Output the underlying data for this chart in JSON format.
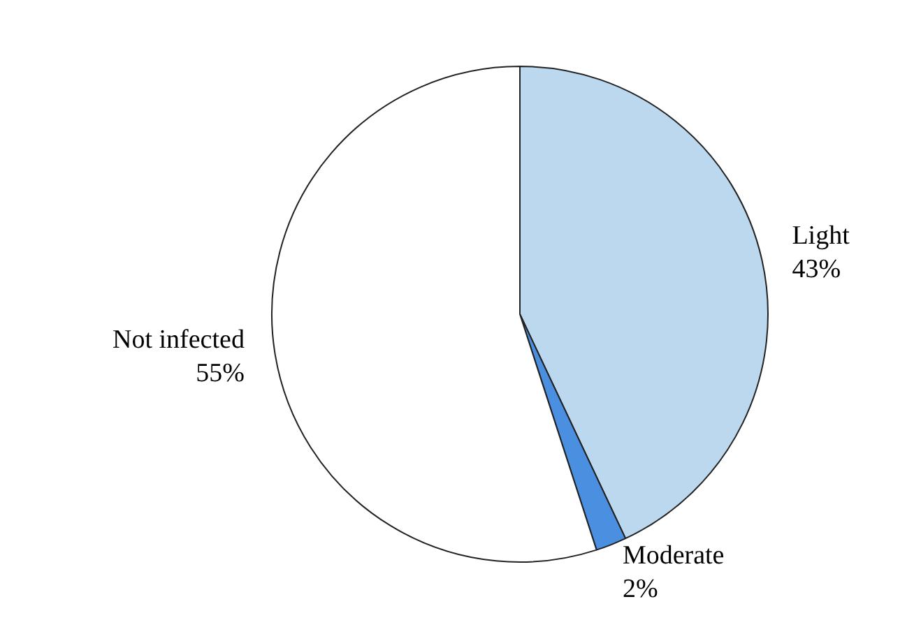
{
  "chart_data": {
    "type": "pie",
    "categories": [
      "Light",
      "Moderate",
      "Not infected"
    ],
    "values": [
      43,
      2,
      55
    ],
    "value_labels": [
      "43%",
      "2%",
      "55%"
    ],
    "colors": [
      "#bcd8ee",
      "#4a8fe0",
      "#ffffff"
    ],
    "legend": false
  }
}
